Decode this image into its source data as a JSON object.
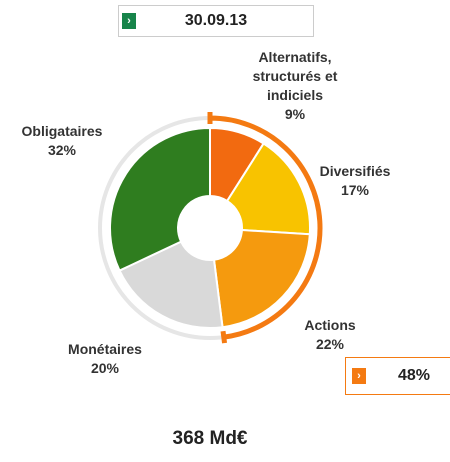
{
  "chart_data": {
    "type": "pie",
    "date": "30.09.13",
    "categories": [
      "Alternatifs, structurés et indiciels",
      "Diversifiés",
      "Actions",
      "Monétaires",
      "Obligataires"
    ],
    "values": [
      9,
      17,
      22,
      20,
      32
    ],
    "value_labels": [
      "9%",
      "17%",
      "22%",
      "20%",
      "32%"
    ],
    "colors": [
      "#f26a10",
      "#f8c300",
      "#f59a0e",
      "#d9d9d9",
      "#2f7d1f"
    ],
    "group_total": 48,
    "group_total_label": "48%",
    "group_color": "#f47a12",
    "total": "368 Md€"
  }
}
